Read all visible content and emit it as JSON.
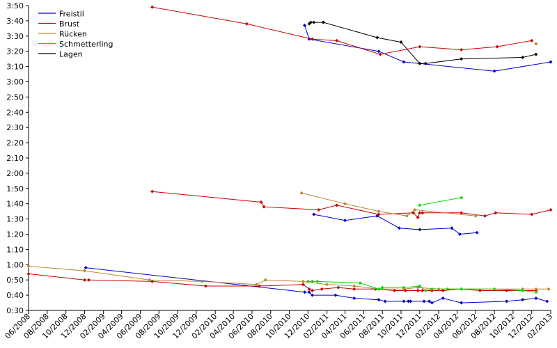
{
  "chart_data": {
    "type": "line",
    "title": "",
    "xlabel": "",
    "ylabel": "",
    "x_range": [
      "2008-06",
      "2013-02"
    ],
    "ylim": [
      "0:30",
      "3:50"
    ],
    "grid": false,
    "legend_position": "top-left",
    "x_tick_labels": [
      "06/2008",
      "08/2008",
      "10/2008",
      "12/2008",
      "02/2009",
      "04/2009",
      "06/2009",
      "08/2009",
      "10/2009",
      "12/2009",
      "02/2010",
      "04/2010",
      "06/2010",
      "08/2010",
      "10/2010",
      "12/2010",
      "02/2011",
      "04/2011",
      "06/2011",
      "08/2011",
      "10/2011",
      "12/2011",
      "02/2012",
      "04/2012",
      "06/2012",
      "08/2012",
      "10/2012",
      "12/2012",
      "02/2013"
    ],
    "y_tick_labels": [
      "0:30",
      "0:40",
      "0:50",
      "1:00",
      "1:10",
      "1:20",
      "1:30",
      "1:40",
      "1:50",
      "2:00",
      "2:10",
      "2:20",
      "2:30",
      "2:40",
      "2:50",
      "3:00",
      "3:10",
      "3:20",
      "3:30",
      "3:40",
      "3:50"
    ],
    "series": [
      {
        "name": "Freistil",
        "color": "#0000cc",
        "lines": [
          {
            "x": [
              "2008-12-05",
              "2010-11-20",
              "2010-12-05",
              "2010-12-15",
              "2011-03-01",
              "2011-05-01",
              "2011-07-20",
              "2011-08-10",
              "2011-10-10",
              "2011-10-25",
              "2011-11-01",
              "2011-12-15",
              "2012-01-01",
              "2012-01-10",
              "2012-02-15",
              "2012-04-15",
              "2012-09-10",
              "2012-11-01",
              "2012-12-15",
              "2013-01-20"
            ],
            "y": [
              "0:58",
              "0:42",
              "0:42",
              "0:40",
              "0:40",
              "0:38",
              "0:37",
              "0:36",
              "0:36",
              "0:36",
              "0:36",
              "0:36",
              "0:36",
              "0:35",
              "0:38",
              "0:35",
              "0:36",
              "0:37",
              "0:38",
              "0:36"
            ]
          },
          {
            "x": [
              "2010-12-20",
              "2011-04-01",
              "2011-07-15",
              "2011-09-25",
              "2011-12-01",
              "2012-03-15",
              "2012-04-10",
              "2012-06-05"
            ],
            "y": [
              "1:33",
              "1:29",
              "1:32",
              "1:24",
              "1:23",
              "1:24",
              "1:20",
              "1:21"
            ]
          },
          {
            "x": [
              "2010-11-20",
              "2010-12-05",
              "2011-07-20",
              "2011-10-10",
              "2012-08-01",
              "2013-02-01"
            ],
            "y": [
              "3:37",
              "3:28",
              "3:20",
              "3:13",
              "3:07",
              "3:13"
            ]
          }
        ]
      },
      {
        "name": "Brust",
        "color": "#cc0000",
        "lines": [
          {
            "x": [
              "2008-06-01",
              "2008-12-01",
              "2008-12-15",
              "2009-07-10",
              "2010-01-01",
              "2010-06-25",
              "2010-11-15",
              "2010-12-05",
              "2010-12-15",
              "2011-01-15",
              "2011-03-10",
              "2011-05-01",
              "2011-07-10",
              "2011-09-10",
              "2011-10-15",
              "2011-11-25",
              "2011-12-10",
              "2012-01-10",
              "2012-02-15",
              "2012-04-15",
              "2012-06-15",
              "2012-09-10",
              "2012-11-01",
              "2012-12-15"
            ],
            "y": [
              "0:54",
              "0:50",
              "0:50",
              "0:49",
              "0:46",
              "0:46",
              "0:47",
              "0:44",
              "0:43",
              "0:44",
              "0:45",
              "0:44",
              "0:44",
              "0:43",
              "0:43",
              "0:43",
              "0:43",
              "0:43",
              "0:43",
              "0:44",
              "0:43",
              "0:43",
              "0:43",
              "0:43"
            ]
          },
          {
            "x": [
              "2009-07-10",
              "2010-07-01",
              "2010-07-10",
              "2011-01-05",
              "2011-03-05",
              "2011-07-20",
              "2011-11-10",
              "2011-11-25",
              "2011-12-01",
              "2011-12-10",
              "2012-04-15",
              "2012-07-01",
              "2012-08-05",
              "2012-12-01",
              "2013-02-01"
            ],
            "y": [
              "1:48",
              "1:41",
              "1:38",
              "1:36",
              "1:39",
              "1:33",
              "1:34",
              "1:31",
              "1:34",
              "1:34",
              "1:34",
              "1:32",
              "1:34",
              "1:33",
              "1:36"
            ]
          },
          {
            "x": [
              "2009-07-10",
              "2010-05-15",
              "2010-12-15",
              "2011-03-05",
              "2011-07-25",
              "2011-12-01",
              "2012-04-15",
              "2012-08-10",
              "2012-12-01"
            ],
            "y": [
              "3:49",
              "3:38",
              "3:28",
              "3:27",
              "3:18",
              "3:23",
              "3:21",
              "3:23",
              "3:27"
            ]
          }
        ]
      },
      {
        "name": "Rücken",
        "color": "#b8862e",
        "lines": [
          {
            "x": [
              "2008-06-01",
              "2008-12-01",
              "2009-07-01",
              "2009-12-20",
              "2010-06-15",
              "2010-07-15",
              "2010-11-15",
              "2011-02-01",
              "2011-05-01",
              "2011-07-20",
              "2011-10-10",
              "2011-11-25",
              "2012-02-01",
              "2012-04-15",
              "2012-08-01",
              "2012-11-01",
              "2012-12-15",
              "2013-01-25"
            ],
            "y": [
              "0:59",
              "0:56",
              "0:50",
              "0:49",
              "0:47",
              "0:50",
              "0:49",
              "0:47",
              "0:46",
              "0:44",
              "0:44",
              "0:45",
              "0:44",
              "0:44",
              "0:44",
              "0:44",
              "0:44",
              "0:44"
            ]
          },
          {
            "x": [
              "2010-11-10",
              "2011-04-01",
              "2011-07-20",
              "2011-10-20",
              "2011-11-15",
              "2012-06-01"
            ],
            "y": [
              "1:47",
              "1:40",
              "1:35",
              "1:32",
              "1:36",
              "1:32"
            ]
          },
          {
            "x": [
              "2012-12-15"
            ],
            "y": [
              "3:25"
            ]
          }
        ]
      },
      {
        "name": "Schmetterling",
        "color": "#00dd00",
        "lines": [
          {
            "x": [
              "2010-12-01",
              "2010-12-15",
              "2011-01-01",
              "2011-05-20",
              "2011-07-20",
              "2011-08-01",
              "2011-10-10",
              "2011-12-01",
              "2011-12-20",
              "2012-01-10",
              "2012-03-01",
              "2012-04-15",
              "2012-08-01",
              "2012-11-01",
              "2012-12-15"
            ],
            "y": [
              "0:49",
              "0:49",
              "0:49",
              "0:48",
              "0:44",
              "0:45",
              "0:45",
              "0:46",
              "0:43",
              "0:44",
              "0:44",
              "0:44",
              "0:44",
              "0:43",
              "0:42"
            ]
          },
          {
            "x": [
              "2011-12-01",
              "2012-04-15"
            ],
            "y": [
              "1:39",
              "1:44"
            ]
          }
        ]
      },
      {
        "name": "Lagen",
        "color": "#000000",
        "lines": [
          {
            "x": [
              "2010-12-05",
              "2010-12-10",
              "2010-12-20",
              "2011-01-20",
              "2011-07-15",
              "2011-10-01",
              "2011-12-01",
              "2011-12-20",
              "2012-04-15",
              "2012-11-01",
              "2012-12-15"
            ],
            "y": [
              "3:38",
              "3:39",
              "3:39",
              "3:39",
              "3:29",
              "3:26",
              "3:12",
              "3:12",
              "3:15",
              "3:16",
              "3:18"
            ]
          }
        ]
      }
    ]
  }
}
